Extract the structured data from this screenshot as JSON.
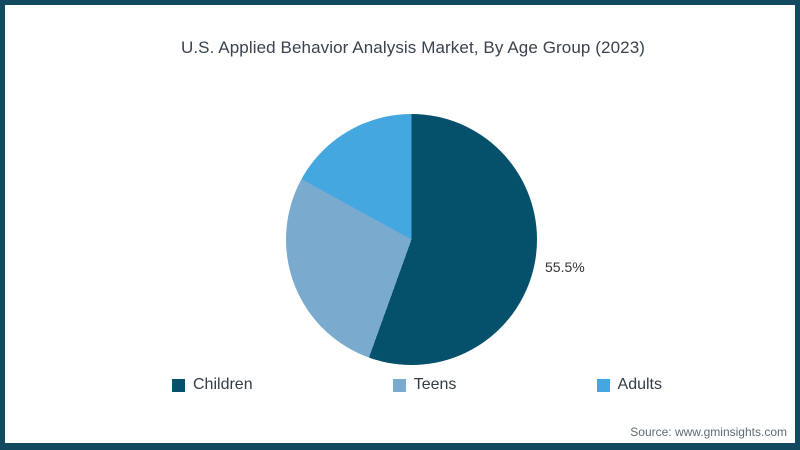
{
  "chart_data": {
    "type": "pie",
    "title": "U.S. Applied Behavior Analysis Market, By Age Group (2023)",
    "categories": [
      "Children",
      "Teens",
      "Adults"
    ],
    "values": [
      55.5,
      27.5,
      17.0
    ],
    "colors": [
      "#05506b",
      "#7aabce",
      "#45a7e0"
    ],
    "data_label": "55.5%",
    "data_label_slice": "Children",
    "start_angle_deg": 0,
    "direction": "clockwise",
    "legend_position": "bottom"
  },
  "source": {
    "text": "Source: www.gminsights.com"
  },
  "colors": {
    "background": "#ffffff",
    "border": "#12495e",
    "title_text": "#39424e",
    "slice_label_text": "#333333",
    "legend_text": "#333d47",
    "source_text": "#5d6a75"
  }
}
